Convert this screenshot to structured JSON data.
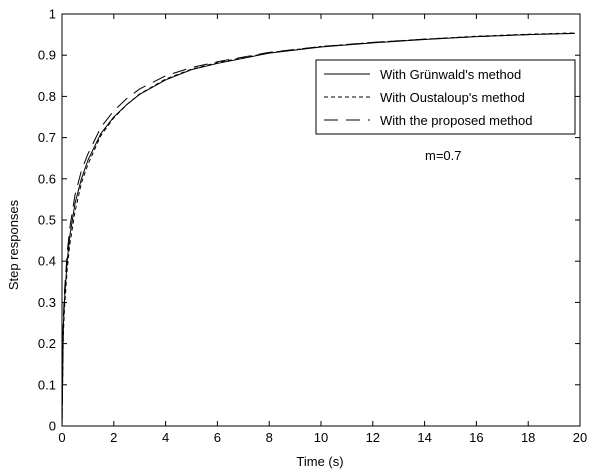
{
  "chart_data": {
    "type": "line",
    "title": "",
    "xlabel": "Time (s)",
    "ylabel": "Step responses",
    "xlim": [
      0,
      20
    ],
    "ylim": [
      0,
      1
    ],
    "xticks": [
      0,
      2,
      4,
      6,
      8,
      10,
      12,
      14,
      16,
      18,
      20
    ],
    "yticks": [
      0,
      0.1,
      0.2,
      0.3,
      0.4,
      0.5,
      0.6,
      0.7,
      0.8,
      0.9,
      1
    ],
    "grid": false,
    "legend_position": "top-right",
    "annotation": "m=0.7",
    "series": [
      {
        "name": "With Grünwald's method",
        "dash": "solid",
        "x": [
          0,
          0.05,
          0.1,
          0.2,
          0.3,
          0.5,
          0.75,
          1,
          1.5,
          2,
          2.5,
          3,
          4,
          5,
          6,
          8,
          10,
          12,
          14,
          16,
          18,
          19.8
        ],
        "y": [
          0,
          0.24,
          0.31,
          0.4,
          0.46,
          0.54,
          0.6,
          0.645,
          0.71,
          0.75,
          0.78,
          0.805,
          0.84,
          0.865,
          0.88,
          0.905,
          0.92,
          0.93,
          0.938,
          0.945,
          0.95,
          0.953
        ]
      },
      {
        "name": "With Oustaloup's method",
        "dash": "short",
        "x": [
          0,
          0.05,
          0.1,
          0.2,
          0.3,
          0.5,
          0.75,
          1,
          1.5,
          2,
          2.5,
          3,
          4,
          5,
          6,
          8,
          10,
          12,
          14,
          16,
          18,
          19.8
        ],
        "y": [
          0,
          0.22,
          0.29,
          0.38,
          0.44,
          0.52,
          0.59,
          0.635,
          0.705,
          0.748,
          0.78,
          0.806,
          0.842,
          0.866,
          0.882,
          0.906,
          0.921,
          0.931,
          0.939,
          0.946,
          0.951,
          0.954
        ]
      },
      {
        "name": "With the proposed method",
        "dash": "long",
        "x": [
          0,
          0.05,
          0.1,
          0.2,
          0.3,
          0.5,
          0.75,
          1,
          1.5,
          2,
          2.5,
          3,
          4,
          5,
          6,
          8,
          10,
          12,
          14,
          16,
          18,
          19.8
        ],
        "y": [
          0,
          0.26,
          0.33,
          0.42,
          0.48,
          0.56,
          0.62,
          0.66,
          0.725,
          0.765,
          0.795,
          0.818,
          0.85,
          0.87,
          0.884,
          0.907,
          0.921,
          0.931,
          0.939,
          0.945,
          0.95,
          0.953
        ]
      }
    ]
  }
}
